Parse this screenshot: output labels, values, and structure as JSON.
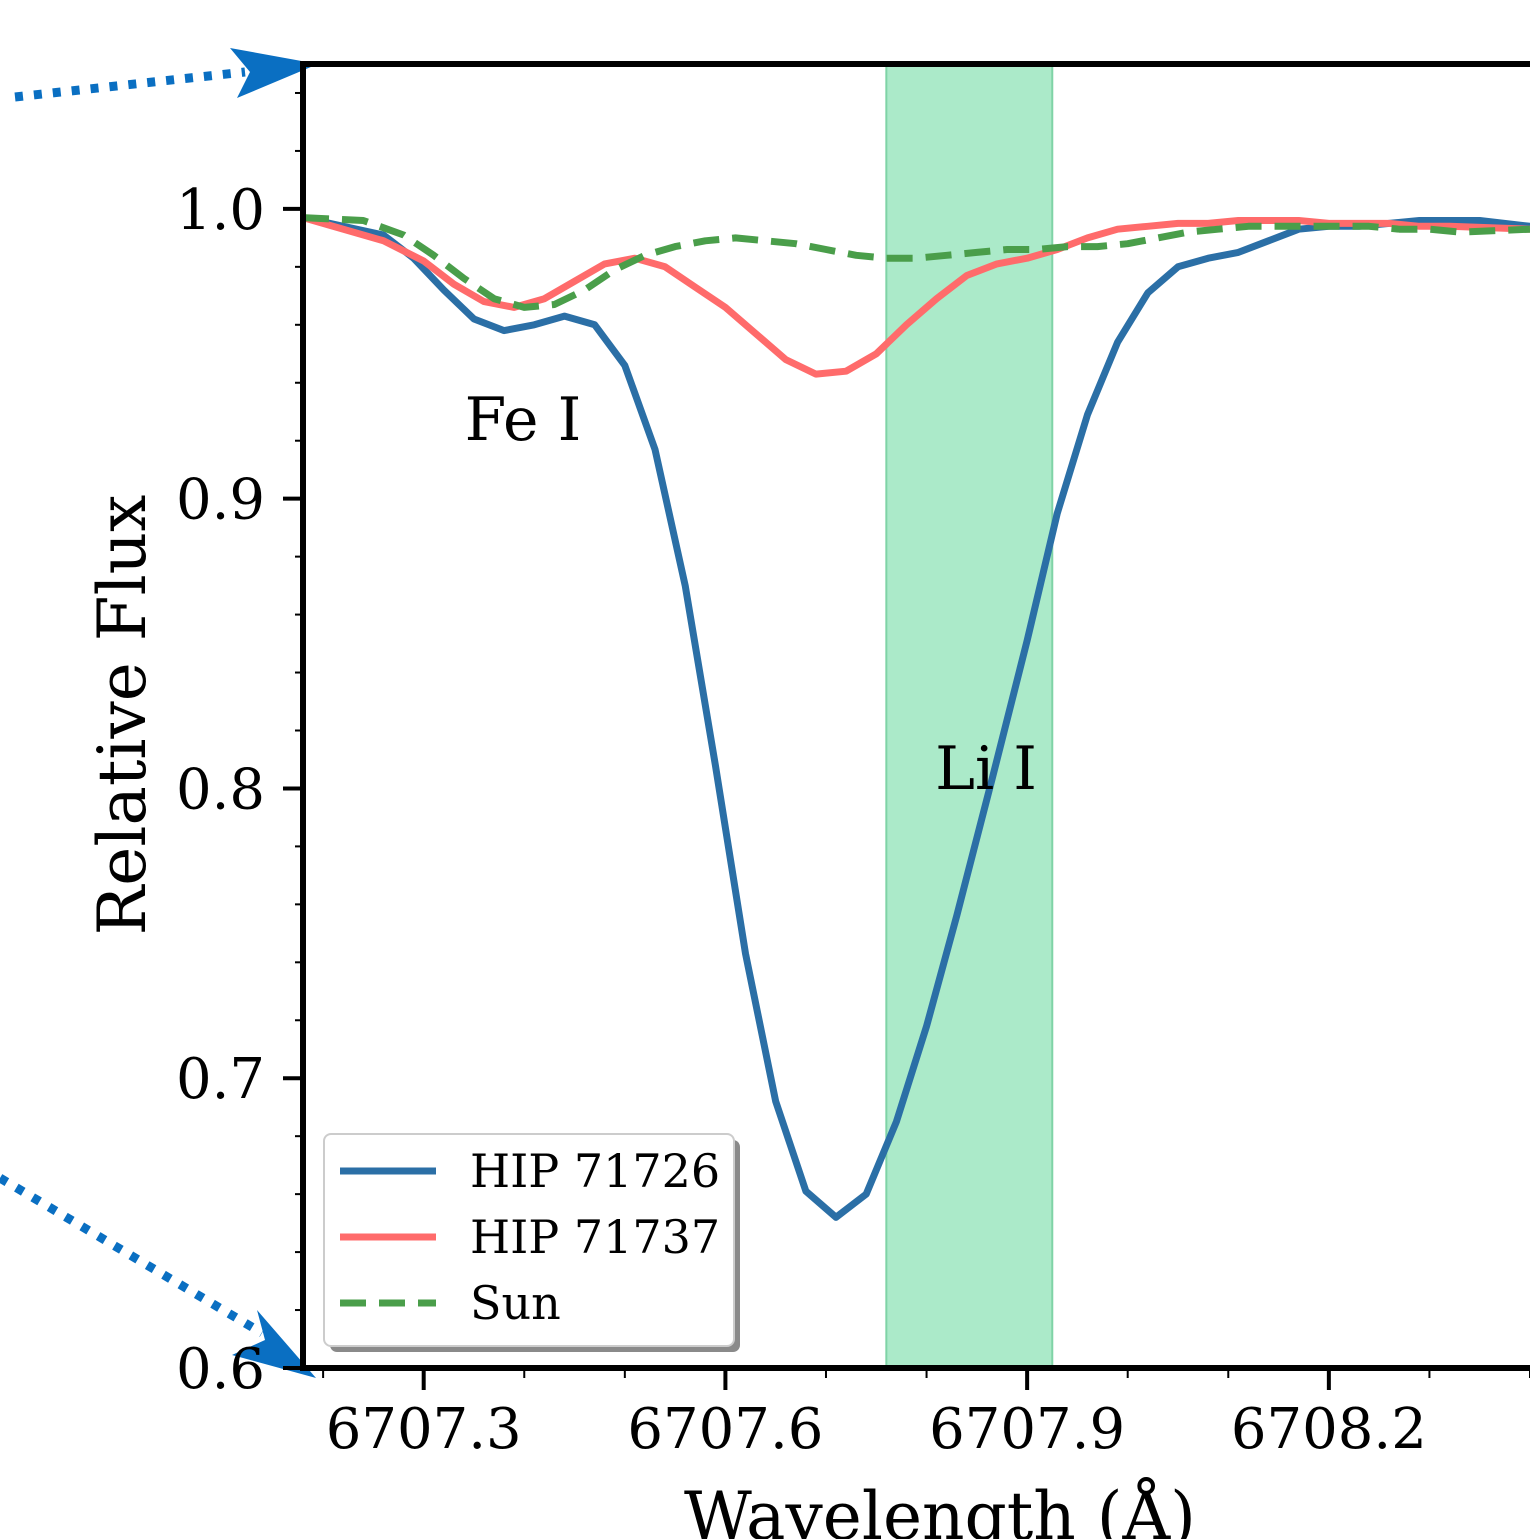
{
  "chart_data": {
    "type": "line",
    "title": "",
    "xlabel": "Wavelength (Å)",
    "ylabel": "Relative Flux",
    "xlim": [
      6707.18,
      6708.4
    ],
    "ylim": [
      0.6,
      1.05
    ],
    "xticks": [
      6707.3,
      6707.6,
      6707.9,
      6708.2
    ],
    "xtick_labels": [
      "6707.3",
      "6707.6",
      "6707.9",
      "6708.2"
    ],
    "yticks": [
      0.6,
      0.7,
      0.8,
      0.9,
      1.0
    ],
    "ytick_labels": [
      "0.6",
      "0.7",
      "0.8",
      "0.9",
      "1.0"
    ],
    "grid": false,
    "legend_position": "lower-left",
    "shaded_region": {
      "x": [
        6707.76,
        6707.925
      ],
      "color": "#abeac9"
    },
    "annotations": [
      {
        "text": "Fe I",
        "x": 6707.4,
        "y": 0.925
      },
      {
        "text": "Li I",
        "x": 6707.84,
        "y": 0.805
      }
    ],
    "series": [
      {
        "name": "HIP 71726",
        "color": "#2b6fa6",
        "style": "solid",
        "x": [
          6707.18,
          6707.26,
          6707.29,
          6707.32,
          6707.35,
          6707.38,
          6707.41,
          6707.44,
          6707.47,
          6707.5,
          6707.53,
          6707.56,
          6707.59,
          6707.62,
          6707.65,
          6707.68,
          6707.71,
          6707.74,
          6707.77,
          6707.8,
          6707.83,
          6707.865,
          6707.9,
          6707.93,
          6707.96,
          6707.99,
          6708.02,
          6708.05,
          6708.08,
          6708.11,
          6708.14,
          6708.17,
          6708.2,
          6708.23,
          6708.26,
          6708.29,
          6708.32,
          6708.35,
          6708.4
        ],
        "y": [
          0.997,
          0.991,
          0.983,
          0.972,
          0.962,
          0.958,
          0.96,
          0.963,
          0.96,
          0.946,
          0.917,
          0.87,
          0.808,
          0.743,
          0.692,
          0.661,
          0.652,
          0.66,
          0.685,
          0.718,
          0.756,
          0.803,
          0.851,
          0.895,
          0.929,
          0.954,
          0.971,
          0.98,
          0.983,
          0.985,
          0.989,
          0.993,
          0.994,
          0.994,
          0.995,
          0.996,
          0.996,
          0.996,
          0.994
        ]
      },
      {
        "name": "HIP 71737",
        "color": "#ff6b6b",
        "style": "solid",
        "x": [
          6707.18,
          6707.26,
          6707.3,
          6707.33,
          6707.36,
          6707.39,
          6707.42,
          6707.45,
          6707.48,
          6707.51,
          6707.54,
          6707.57,
          6707.6,
          6707.63,
          6707.66,
          6707.69,
          6707.72,
          6707.75,
          6707.78,
          6707.81,
          6707.84,
          6707.87,
          6707.9,
          6707.93,
          6707.96,
          6707.99,
          6708.02,
          6708.05,
          6708.08,
          6708.11,
          6708.14,
          6708.17,
          6708.2,
          6708.23,
          6708.26,
          6708.29,
          6708.32,
          6708.4
        ],
        "y": [
          0.997,
          0.989,
          0.982,
          0.974,
          0.968,
          0.966,
          0.969,
          0.975,
          0.981,
          0.983,
          0.98,
          0.973,
          0.966,
          0.957,
          0.948,
          0.943,
          0.944,
          0.95,
          0.96,
          0.969,
          0.977,
          0.981,
          0.983,
          0.986,
          0.99,
          0.993,
          0.994,
          0.995,
          0.995,
          0.996,
          0.996,
          0.996,
          0.995,
          0.995,
          0.995,
          0.994,
          0.994,
          0.993
        ]
      },
      {
        "name": "Sun",
        "color": "#4a9e4a",
        "style": "dashed",
        "x": [
          6707.18,
          6707.24,
          6707.28,
          6707.31,
          6707.34,
          6707.37,
          6707.4,
          6707.43,
          6707.46,
          6707.49,
          6707.52,
          6707.55,
          6707.58,
          6707.61,
          6707.64,
          6707.67,
          6707.7,
          6707.73,
          6707.76,
          6707.79,
          6707.82,
          6707.85,
          6707.88,
          6707.91,
          6707.94,
          6707.97,
          6708.0,
          6708.03,
          6708.06,
          6708.09,
          6708.12,
          6708.15,
          6708.18,
          6708.21,
          6708.24,
          6708.27,
          6708.3,
          6708.33,
          6708.4
        ],
        "y": [
          0.997,
          0.996,
          0.991,
          0.984,
          0.976,
          0.969,
          0.966,
          0.967,
          0.972,
          0.979,
          0.984,
          0.987,
          0.989,
          0.99,
          0.989,
          0.988,
          0.986,
          0.984,
          0.983,
          0.983,
          0.984,
          0.985,
          0.986,
          0.986,
          0.987,
          0.987,
          0.988,
          0.99,
          0.992,
          0.993,
          0.994,
          0.994,
          0.994,
          0.994,
          0.994,
          0.993,
          0.993,
          0.992,
          0.993
        ]
      }
    ]
  }
}
